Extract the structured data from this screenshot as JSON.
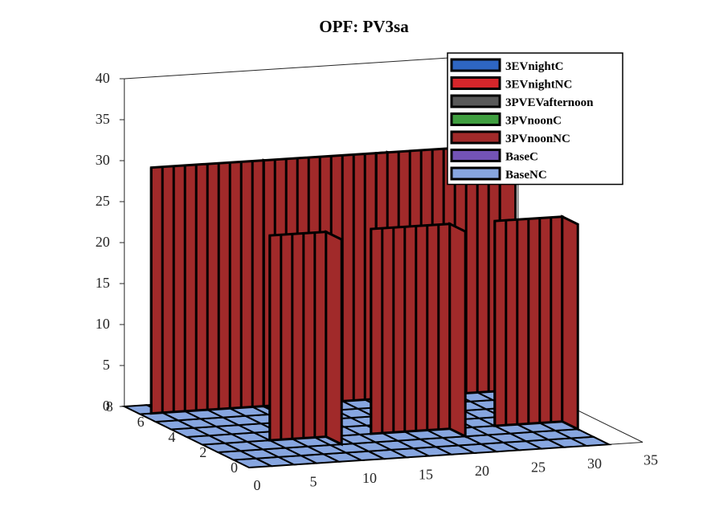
{
  "chart_data": {
    "type": "bar3",
    "title": "OPF: PV3sa",
    "zlim": [
      0,
      40
    ],
    "z_ticks": [
      0,
      5,
      10,
      15,
      20,
      25,
      30,
      35,
      40
    ],
    "x_ticks": [
      0,
      5,
      10,
      15,
      20,
      25,
      30,
      35
    ],
    "y_ticks": [
      0,
      2,
      4,
      6,
      8
    ],
    "legend_placement": "top-right",
    "series": [
      {
        "name": "3EVnightC",
        "color": "#2e66c2"
      },
      {
        "name": "3EVnightNC",
        "color": "#d6262b"
      },
      {
        "name": "3PVEVafternoon",
        "color": "#595959"
      },
      {
        "name": "3PVnoonC",
        "color": "#3f9e3f"
      },
      {
        "name": "3PVnoonNC",
        "color": "#a12a2a"
      },
      {
        "name": "BaseC",
        "color": "#7353b5"
      },
      {
        "name": "BaseNC",
        "color": "#87a6e0"
      }
    ],
    "bar_series": "3PVnoonNC",
    "bar_groups": [
      {
        "x": [
          1,
          2,
          3,
          4,
          5,
          6,
          7,
          8,
          9,
          10
        ],
        "z": 30
      },
      {
        "x": [
          11,
          12,
          13,
          14,
          15,
          16,
          17,
          18,
          19,
          20,
          21
        ],
        "z": 30
      },
      {
        "x": [
          21,
          22,
          23,
          24,
          25,
          26,
          27,
          28,
          29,
          30,
          31
        ],
        "z": 30
      }
    ],
    "front_panels": [
      {
        "x": [
          6,
          10
        ],
        "z": 25
      },
      {
        "x": [
          15,
          21
        ],
        "z": 25
      },
      {
        "x": [
          26,
          31
        ],
        "z": 25
      }
    ],
    "floor_series": "BaseNC",
    "floor_rows": 8,
    "floor_x_range": [
      0,
      32
    ]
  }
}
